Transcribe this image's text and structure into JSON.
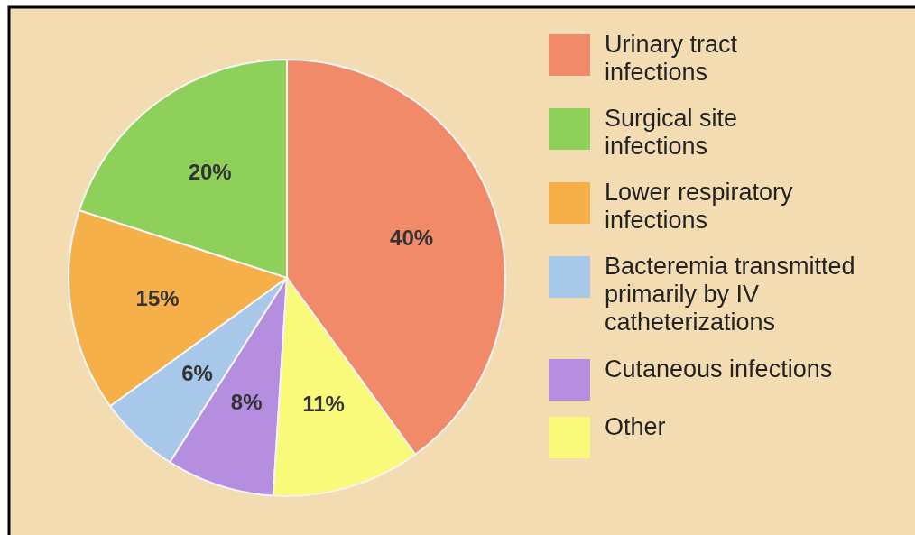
{
  "chart_data": {
    "type": "pie",
    "categories": [
      "Urinary tract infections",
      "Surgical site infections",
      "Lower respiratory infections",
      "Bacteremia transmitted primarily by IV catheterizations",
      "Cutaneous infections",
      "Other"
    ],
    "values": [
      40,
      20,
      15,
      6,
      8,
      11
    ],
    "colors": [
      "#f08a68",
      "#8fd05a",
      "#f5b04a",
      "#a8c8ea",
      "#b58ee0",
      "#fafa7a"
    ],
    "value_labels": [
      "40%",
      "20%",
      "15%",
      "6%",
      "8%",
      "11%"
    ],
    "legend": "right"
  }
}
